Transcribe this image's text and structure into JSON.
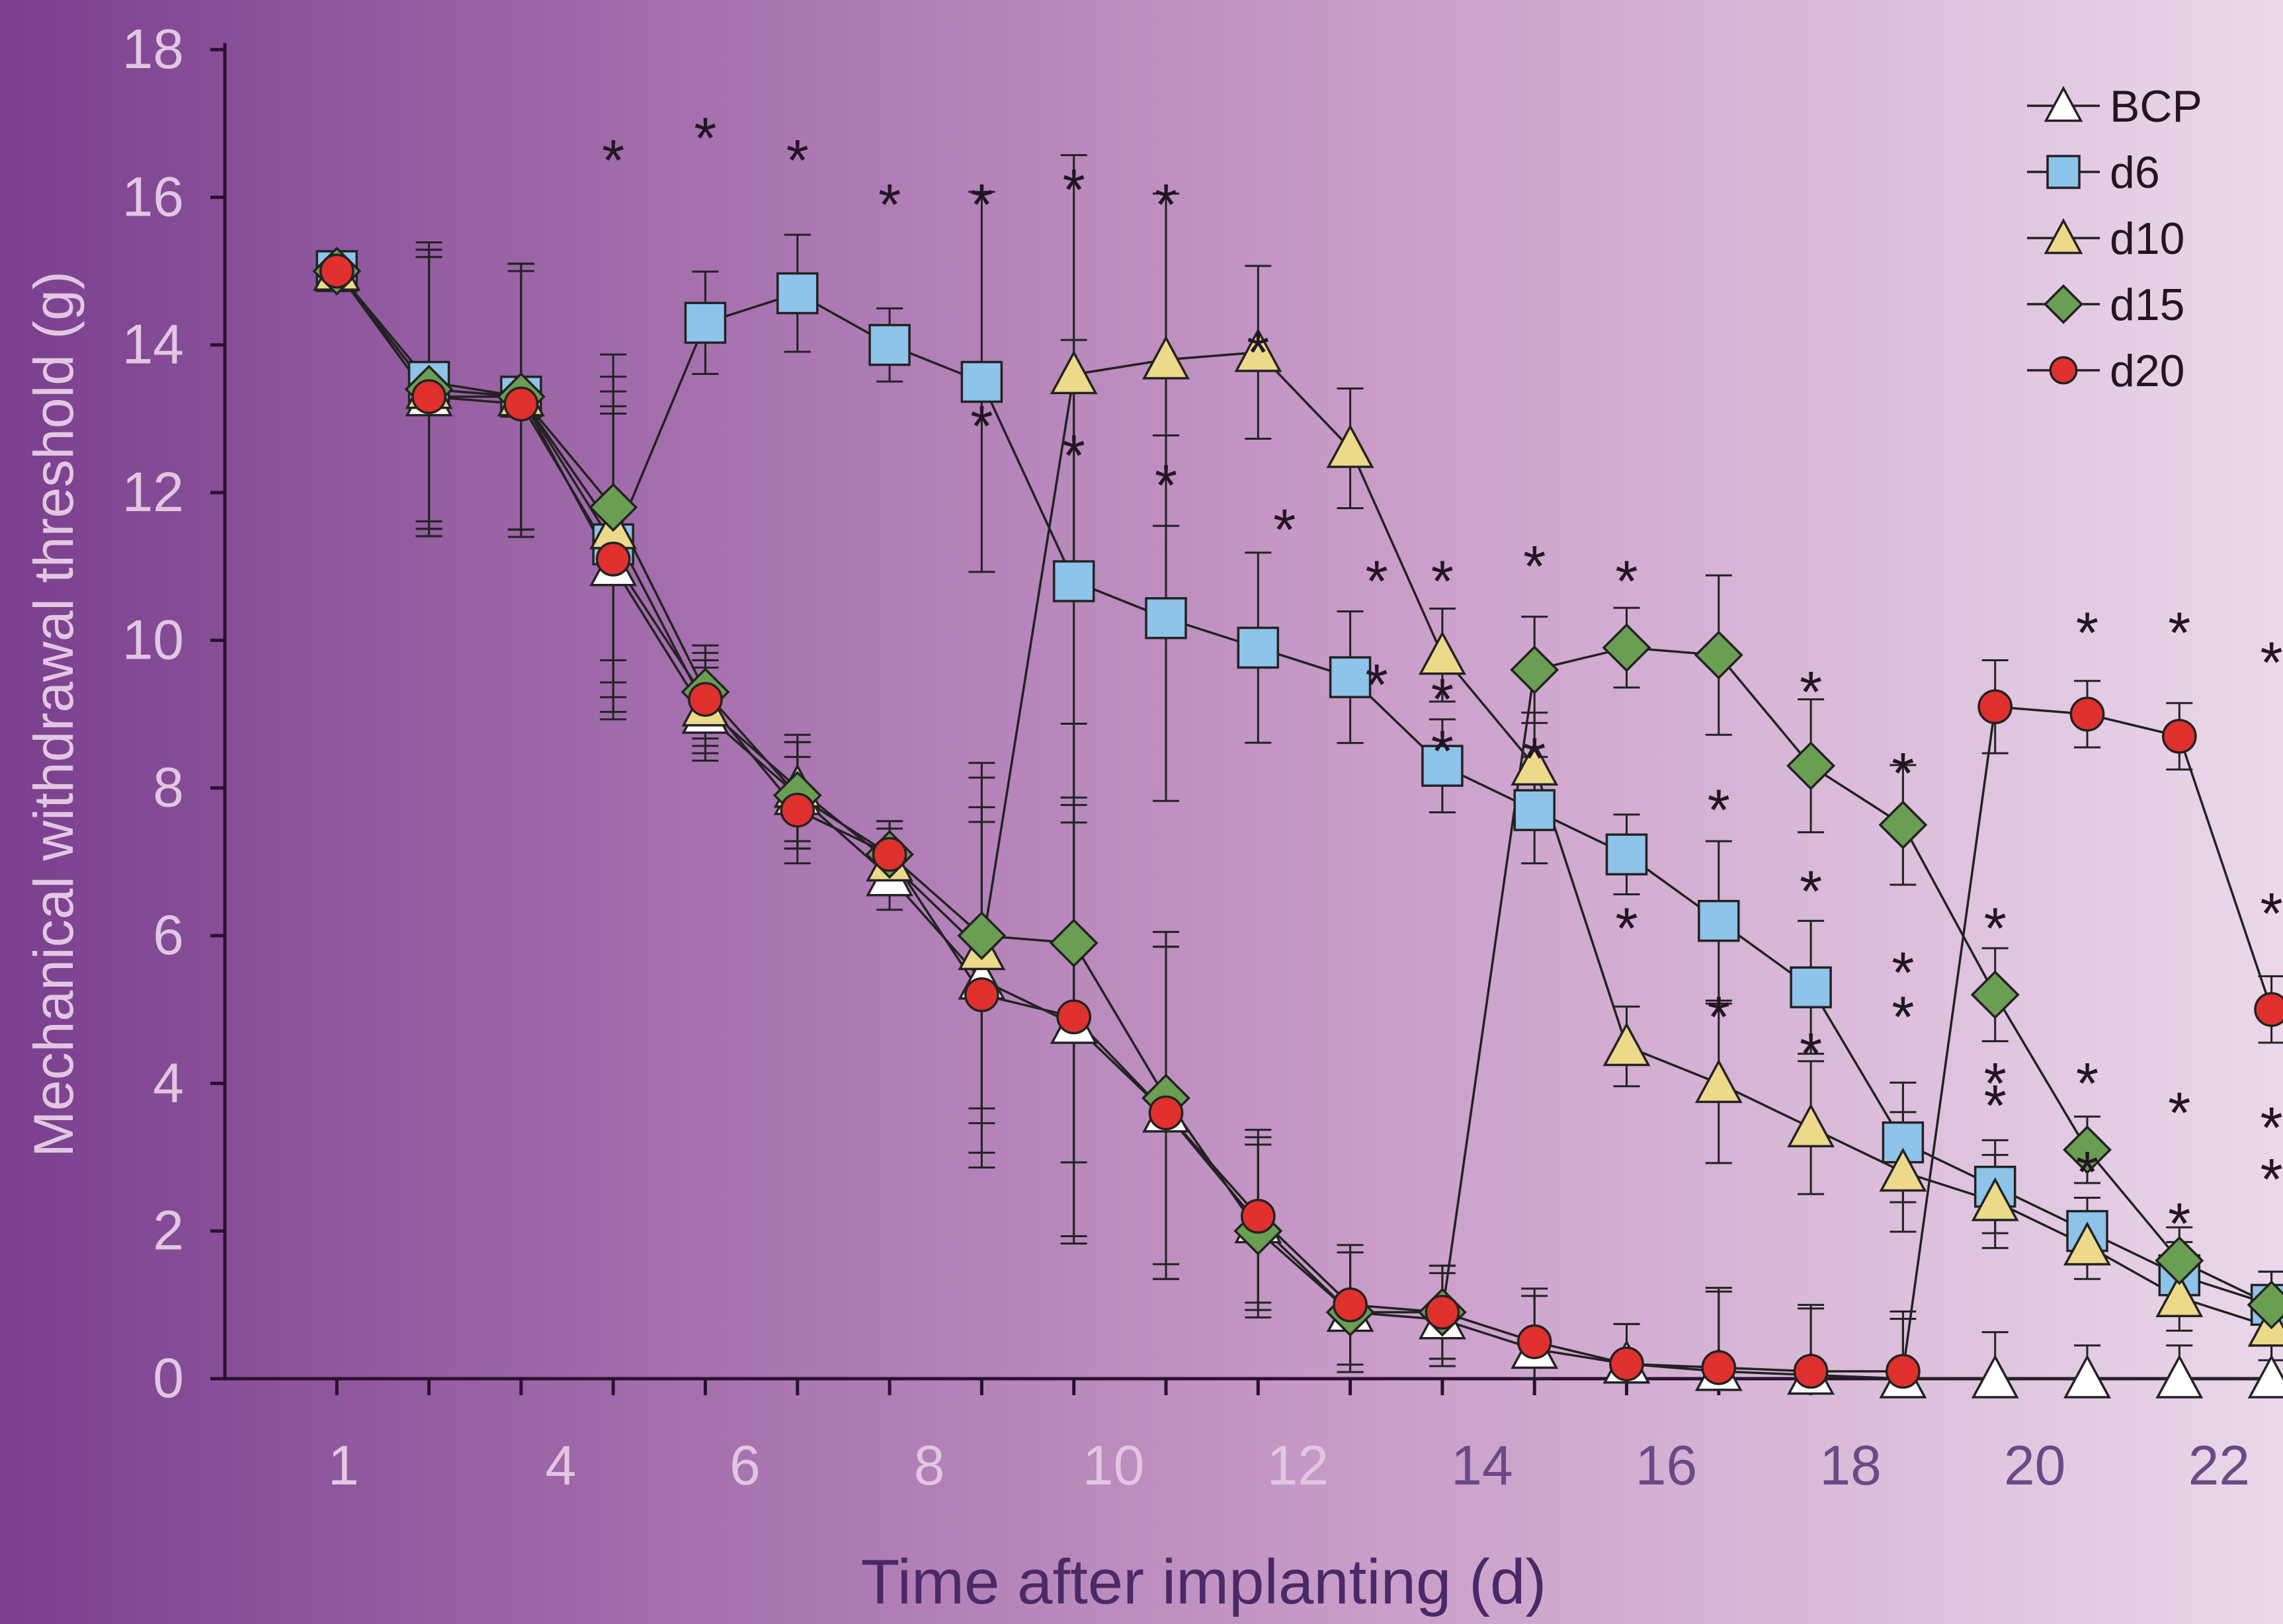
{
  "chart_data": {
    "type": "line",
    "xlabel": "Time after implanting (d)",
    "ylabel": "Mechanical withdrawal threshold (g)",
    "ylim": [
      0,
      18
    ],
    "yticks": [
      0,
      2,
      4,
      6,
      8,
      10,
      12,
      14,
      16,
      18
    ],
    "xtick_labels": [
      "1",
      "4",
      "6",
      "8",
      "10",
      "12",
      "14",
      "16",
      "18",
      "20",
      "22"
    ],
    "grid": false,
    "legend_position": "top-right",
    "significance_marker": "*",
    "series": [
      {
        "name": "BCP",
        "marker": "triangle",
        "color": "#ffffff",
        "values": [
          15,
          13.3,
          13.3,
          11.0,
          9.0,
          7.9,
          6.8,
          5.4,
          4.8,
          3.6,
          2.1,
          0.9,
          0.8,
          0.4,
          0.2,
          0.1,
          0.05,
          0.0,
          0.0,
          0.0,
          0.0,
          0.0
        ]
      },
      {
        "name": "d6",
        "marker": "square",
        "color": "#8ec3ea",
        "values": [
          15,
          13.5,
          13.3,
          11.3,
          14.3,
          14.7,
          14.0,
          13.5,
          10.8,
          10.3,
          9.9,
          9.5,
          8.3,
          7.7,
          7.1,
          6.2,
          5.3,
          3.2,
          2.6,
          2.0,
          1.4,
          1.0
        ]
      },
      {
        "name": "d10",
        "marker": "triangle",
        "color": "#ecd98a",
        "values": [
          15,
          13.4,
          13.3,
          11.5,
          9.1,
          8.0,
          7.0,
          5.8,
          13.6,
          13.8,
          13.9,
          12.6,
          9.8,
          8.3,
          4.5,
          4.0,
          3.4,
          2.8,
          2.4,
          1.8,
          1.1,
          0.7
        ]
      },
      {
        "name": "d15",
        "marker": "diamond",
        "color": "#6a9e52",
        "values": [
          15,
          13.4,
          13.3,
          11.8,
          9.3,
          7.9,
          7.1,
          6.0,
          5.9,
          3.8,
          2.0,
          0.9,
          0.9,
          9.6,
          9.9,
          9.8,
          8.3,
          7.5,
          5.2,
          3.1,
          1.6,
          1.0
        ]
      },
      {
        "name": "d20",
        "marker": "circle",
        "color": "#e0302e",
        "values": [
          15,
          13.3,
          13.2,
          11.1,
          9.2,
          7.7,
          7.1,
          5.2,
          4.9,
          3.6,
          2.2,
          1.0,
          0.9,
          0.5,
          0.2,
          0.15,
          0.1,
          0.1,
          9.1,
          9.0,
          8.7,
          5.0
        ]
      }
    ]
  }
}
